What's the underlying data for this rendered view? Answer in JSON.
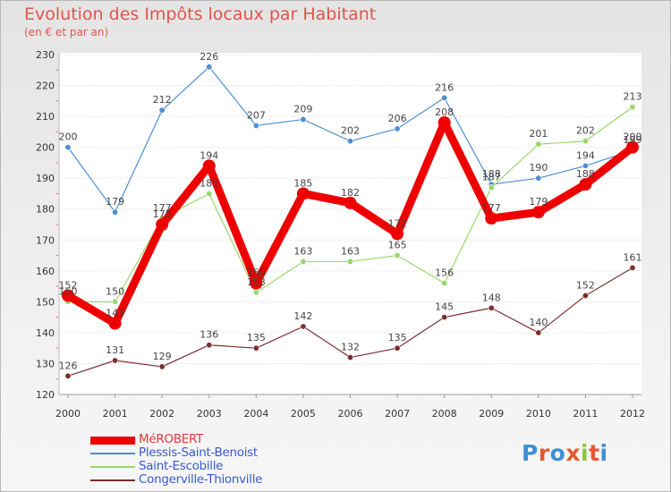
{
  "title": "Evolution des Impôts locaux par Habitant",
  "subtitle": "(en € et par an)",
  "brand": {
    "text": "Proxiti",
    "colors": [
      "#3f8fd2",
      "#e35b2f",
      "#3f8fd2",
      "#e35b2f",
      "#8fc63f",
      "#e35b2f",
      "#3f8fd2"
    ]
  },
  "chart_data": {
    "type": "line",
    "title": "Evolution des Impôts locaux par Habitant",
    "subtitle": "(en € et par an)",
    "xlabel": "",
    "ylabel": "",
    "ylim": [
      120,
      230
    ],
    "yticks": [
      120,
      130,
      140,
      150,
      160,
      170,
      180,
      190,
      200,
      210,
      220,
      230
    ],
    "grid": true,
    "legend_position": "bottom-left",
    "categories": [
      "2000",
      "2001",
      "2002",
      "2003",
      "2004",
      "2005",
      "2006",
      "2007",
      "2008",
      "2009",
      "2010",
      "2011",
      "2012"
    ],
    "series": [
      {
        "name": "Plessis-Saint-Benoist",
        "color": "#4d8fd1",
        "values": [
          200,
          179,
          212,
          226,
          207,
          209,
          202,
          206,
          216,
          188,
          190,
          194,
          199
        ],
        "labels": [
          "200",
          "179",
          "212",
          "226",
          "207",
          "209",
          "202",
          "206",
          "216",
          "188",
          "190",
          "194",
          "199"
        ]
      },
      {
        "name": "Saint-Escobille",
        "color": "#99d86a",
        "values": [
          150,
          150,
          177,
          185,
          153,
          163,
          163,
          165,
          156,
          187,
          201,
          202,
          213
        ],
        "labels": [
          "150",
          "150",
          "177",
          "185",
          "153",
          "163",
          "163",
          "165",
          "156",
          "187",
          "201",
          "202",
          "213"
        ]
      },
      {
        "name": "Congerville-Thionville",
        "color": "#7a2f2f",
        "values": [
          126,
          131,
          129,
          136,
          135,
          142,
          132,
          135,
          145,
          148,
          140,
          152,
          161
        ],
        "labels": [
          "126",
          "131",
          "129",
          "136",
          "135",
          "142",
          "132",
          "135",
          "145",
          "148",
          "140",
          "152",
          "161"
        ]
      },
      {
        "name": "MéROBERT",
        "color": "#ee0000",
        "values": [
          152,
          143,
          175,
          194,
          156,
          185,
          182,
          172,
          208,
          177,
          179,
          188,
          200
        ],
        "labels": [
          "152",
          "143",
          "175",
          "194",
          "156",
          "185",
          "182",
          "172",
          "208",
          "177",
          "179",
          "188",
          "200"
        ]
      }
    ],
    "legend_order": [
      "MéROBERT",
      "Plessis-Saint-Benoist",
      "Saint-Escobille",
      "Congerville-Thionville"
    ]
  }
}
